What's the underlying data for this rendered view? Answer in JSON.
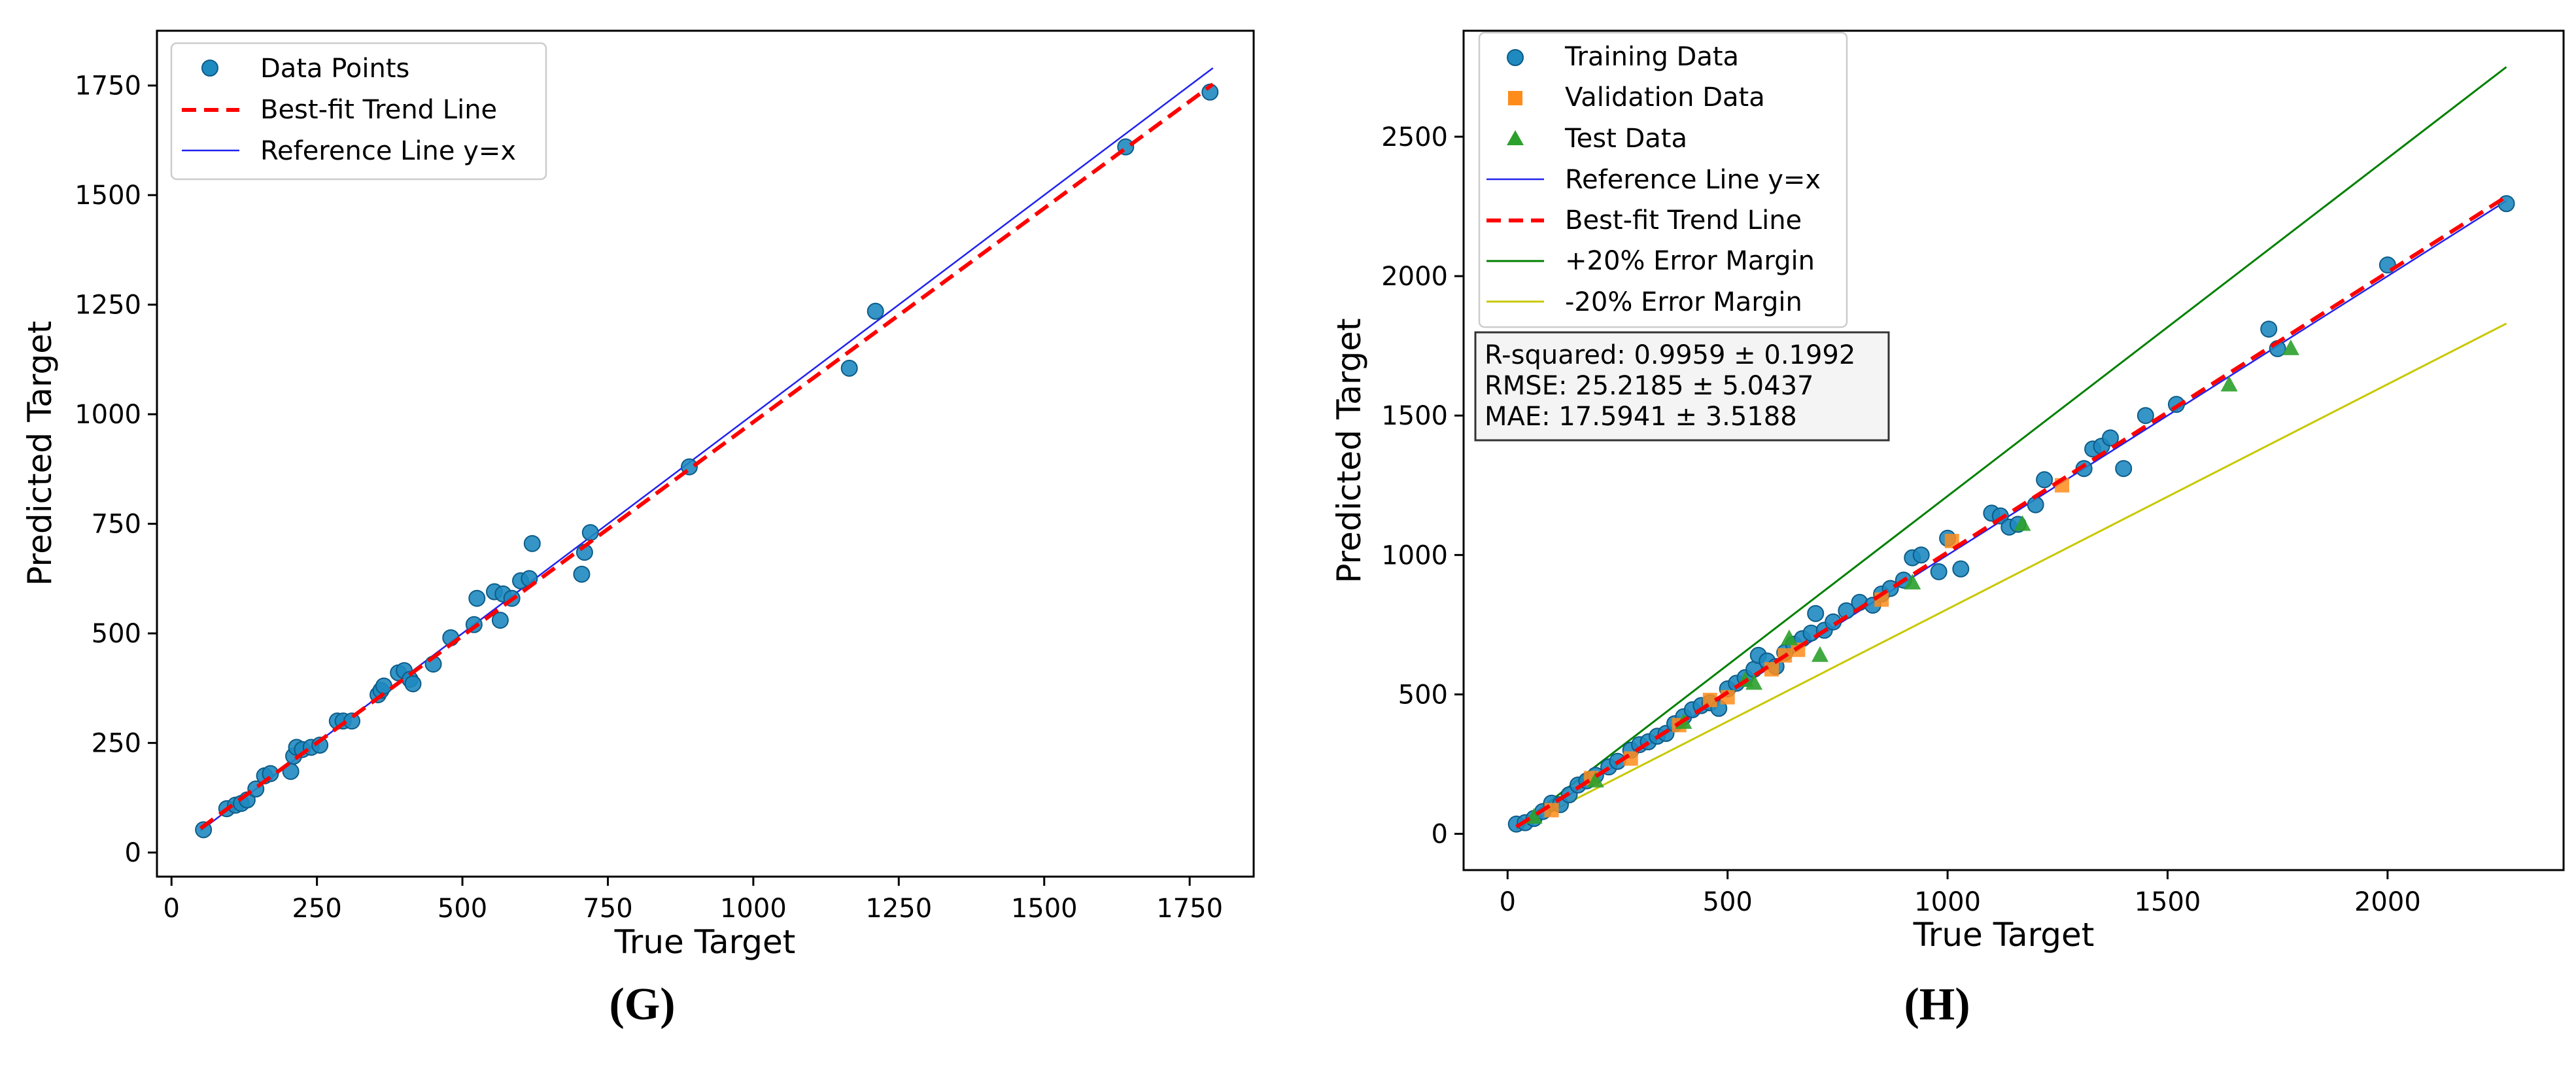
{
  "captions": {
    "left": "(G)",
    "right": "(H)"
  },
  "chart_data": [
    {
      "type": "scatter",
      "xlabel": "True Target",
      "ylabel": "Predicted Target",
      "xlim": [
        -25,
        1860
      ],
      "ylim": [
        -55,
        1875
      ],
      "xticks": [
        0,
        250,
        500,
        750,
        1000,
        1250,
        1500,
        1750
      ],
      "yticks": [
        0,
        250,
        500,
        750,
        1000,
        1250,
        1500,
        1750
      ],
      "legend_position": "top-left",
      "legend": [
        "Data Points",
        "Best-fit Trend Line",
        "Reference Line y=x"
      ],
      "lines": {
        "reference": {
          "name": "Reference Line y=x",
          "color": "#2222ee",
          "points": [
            [
              50,
              50
            ],
            [
              1790,
              1790
            ]
          ]
        },
        "trend": {
          "name": "Best-fit Trend Line",
          "color": "#ff0000",
          "points": [
            [
              50,
              55
            ],
            [
              1790,
              1753
            ]
          ]
        }
      },
      "series": [
        {
          "name": "Data Points",
          "color": "#1f8ac0",
          "points": [
            [
              55,
              52
            ],
            [
              95,
              100
            ],
            [
              110,
              108
            ],
            [
              120,
              112
            ],
            [
              130,
              120
            ],
            [
              145,
              145
            ],
            [
              160,
              175
            ],
            [
              170,
              180
            ],
            [
              205,
              185
            ],
            [
              210,
              220
            ],
            [
              215,
              240
            ],
            [
              225,
              235
            ],
            [
              240,
              240
            ],
            [
              255,
              245
            ],
            [
              285,
              300
            ],
            [
              295,
              300
            ],
            [
              310,
              300
            ],
            [
              355,
              360
            ],
            [
              360,
              370
            ],
            [
              365,
              380
            ],
            [
              390,
              410
            ],
            [
              400,
              415
            ],
            [
              410,
              395
            ],
            [
              415,
              385
            ],
            [
              450,
              430
            ],
            [
              480,
              490
            ],
            [
              520,
              520
            ],
            [
              525,
              580
            ],
            [
              555,
              595
            ],
            [
              565,
              530
            ],
            [
              570,
              590
            ],
            [
              585,
              580
            ],
            [
              600,
              620
            ],
            [
              615,
              625
            ],
            [
              620,
              705
            ],
            [
              705,
              635
            ],
            [
              710,
              685
            ],
            [
              720,
              730
            ],
            [
              890,
              880
            ],
            [
              1165,
              1105
            ],
            [
              1210,
              1235
            ],
            [
              1640,
              1610
            ],
            [
              1785,
              1735
            ]
          ]
        }
      ]
    },
    {
      "type": "scatter",
      "xlabel": "True Target",
      "ylabel": "Predicted Target",
      "xlim": [
        -100,
        2400
      ],
      "ylim": [
        -130,
        2880
      ],
      "xticks": [
        0,
        500,
        1000,
        1500,
        2000
      ],
      "yticks": [
        0,
        500,
        1000,
        1500,
        2000,
        2500
      ],
      "legend_position": "top-left",
      "legend": [
        "Training Data",
        "Validation Data",
        "Test Data",
        "Reference Line y=x",
        "Best-fit Trend Line",
        "+20% Error Margin",
        "-20% Error Margin"
      ],
      "stats": [
        "R-squared: 0.9959 ± 0.1992",
        "RMSE: 25.2185 ± 5.0437",
        "MAE: 17.5941 ± 3.5188"
      ],
      "lines": {
        "reference": {
          "name": "Reference Line y=x",
          "color": "#2222ee",
          "points": [
            [
              20,
              20
            ],
            [
              2270,
              2270
            ]
          ]
        },
        "trend": {
          "name": "Best-fit Trend Line",
          "color": "#ff0000",
          "points": [
            [
              20,
              25
            ],
            [
              2270,
              2285
            ]
          ]
        },
        "plus20": {
          "name": "+20% Error Margin",
          "color": "#008000",
          "points": [
            [
              20,
              24
            ],
            [
              2270,
              2750
            ]
          ]
        },
        "minus20": {
          "name": "-20% Error Margin",
          "color": "#c8c800",
          "points": [
            [
              20,
              16
            ],
            [
              2270,
              1830
            ]
          ]
        }
      },
      "series": [
        {
          "name": "Training Data",
          "marker": "circle",
          "color": "#1f8ac0",
          "points": [
            [
              20,
              35
            ],
            [
              40,
              40
            ],
            [
              60,
              55
            ],
            [
              80,
              80
            ],
            [
              100,
              110
            ],
            [
              120,
              105
            ],
            [
              140,
              140
            ],
            [
              160,
              175
            ],
            [
              180,
              190
            ],
            [
              200,
              210
            ],
            [
              230,
              240
            ],
            [
              250,
              260
            ],
            [
              280,
              300
            ],
            [
              300,
              320
            ],
            [
              320,
              330
            ],
            [
              340,
              350
            ],
            [
              360,
              360
            ],
            [
              380,
              395
            ],
            [
              400,
              420
            ],
            [
              420,
              445
            ],
            [
              440,
              460
            ],
            [
              460,
              470
            ],
            [
              480,
              450
            ],
            [
              500,
              520
            ],
            [
              520,
              540
            ],
            [
              540,
              560
            ],
            [
              560,
              590
            ],
            [
              570,
              640
            ],
            [
              590,
              620
            ],
            [
              610,
              600
            ],
            [
              630,
              650
            ],
            [
              650,
              680
            ],
            [
              670,
              700
            ],
            [
              690,
              720
            ],
            [
              700,
              790
            ],
            [
              720,
              730
            ],
            [
              740,
              760
            ],
            [
              770,
              800
            ],
            [
              800,
              830
            ],
            [
              830,
              820
            ],
            [
              850,
              860
            ],
            [
              870,
              880
            ],
            [
              900,
              910
            ],
            [
              920,
              990
            ],
            [
              940,
              1000
            ],
            [
              980,
              940
            ],
            [
              1000,
              1060
            ],
            [
              1030,
              950
            ],
            [
              1100,
              1150
            ],
            [
              1120,
              1140
            ],
            [
              1140,
              1100
            ],
            [
              1160,
              1110
            ],
            [
              1200,
              1180
            ],
            [
              1220,
              1270
            ],
            [
              1310,
              1310
            ],
            [
              1330,
              1380
            ],
            [
              1350,
              1390
            ],
            [
              1370,
              1420
            ],
            [
              1400,
              1310
            ],
            [
              1450,
              1500
            ],
            [
              1520,
              1540
            ],
            [
              1730,
              1810
            ],
            [
              1750,
              1740
            ],
            [
              2000,
              2040
            ],
            [
              2270,
              2260
            ]
          ]
        },
        {
          "name": "Validation Data",
          "marker": "square",
          "color": "#ff8c1a",
          "points": [
            [
              100,
              85
            ],
            [
              190,
              200
            ],
            [
              280,
              270
            ],
            [
              390,
              390
            ],
            [
              460,
              480
            ],
            [
              500,
              490
            ],
            [
              600,
              590
            ],
            [
              630,
              640
            ],
            [
              660,
              660
            ],
            [
              850,
              840
            ],
            [
              1010,
              1050
            ],
            [
              1260,
              1250
            ]
          ]
        },
        {
          "name": "Test Data",
          "marker": "triangle",
          "color": "#2ca02c",
          "points": [
            [
              60,
              60
            ],
            [
              200,
              190
            ],
            [
              400,
              400
            ],
            [
              540,
              550
            ],
            [
              560,
              540
            ],
            [
              640,
              700
            ],
            [
              710,
              640
            ],
            [
              920,
              900
            ],
            [
              1170,
              1110
            ],
            [
              1640,
              1610
            ],
            [
              1780,
              1740
            ]
          ]
        }
      ]
    }
  ]
}
